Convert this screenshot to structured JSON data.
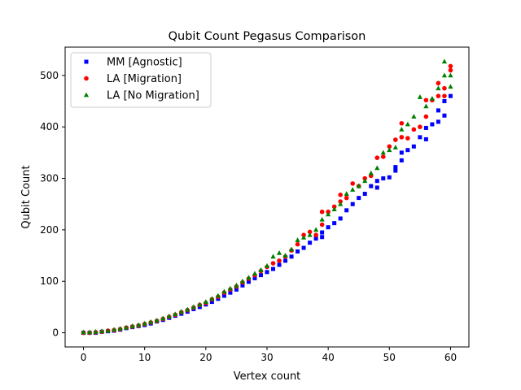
{
  "chart_data": {
    "type": "scatter",
    "title": "Qubit Count Pegasus Comparison",
    "xlabel": "Vertex count",
    "ylabel": "Qubit Count",
    "xlim": [
      -3,
      63
    ],
    "ylim": [
      -27.5,
      555
    ],
    "xticks": [
      0,
      10,
      20,
      30,
      40,
      50,
      60
    ],
    "yticks": [
      0,
      100,
      200,
      300,
      400,
      500
    ],
    "grid": false,
    "legend_position": "top-left",
    "series": [
      {
        "name": "MM [Agnostic]",
        "marker": "square",
        "color": "#0000ff",
        "points": [
          [
            0,
            0
          ],
          [
            1,
            0
          ],
          [
            2,
            0
          ],
          [
            3,
            2
          ],
          [
            4,
            3
          ],
          [
            5,
            4
          ],
          [
            6,
            6
          ],
          [
            7,
            9
          ],
          [
            8,
            11
          ],
          [
            9,
            13
          ],
          [
            10,
            15
          ],
          [
            11,
            18
          ],
          [
            12,
            22
          ],
          [
            13,
            25
          ],
          [
            14,
            29
          ],
          [
            15,
            33
          ],
          [
            16,
            37
          ],
          [
            17,
            41
          ],
          [
            18,
            46
          ],
          [
            19,
            50
          ],
          [
            20,
            55
          ],
          [
            21,
            60
          ],
          [
            22,
            66
          ],
          [
            23,
            72
          ],
          [
            24,
            78
          ],
          [
            25,
            84
          ],
          [
            26,
            92
          ],
          [
            27,
            99
          ],
          [
            28,
            106
          ],
          [
            29,
            112
          ],
          [
            30,
            118
          ],
          [
            31,
            124
          ],
          [
            32,
            132
          ],
          [
            33,
            140
          ],
          [
            34,
            148
          ],
          [
            35,
            158
          ],
          [
            36,
            165
          ],
          [
            37,
            175
          ],
          [
            38,
            183
          ],
          [
            39,
            186
          ],
          [
            39,
            195
          ],
          [
            40,
            205
          ],
          [
            41,
            213
          ],
          [
            42,
            222
          ],
          [
            43,
            238
          ],
          [
            44,
            250
          ],
          [
            45,
            262
          ],
          [
            46,
            270
          ],
          [
            47,
            285
          ],
          [
            48,
            282
          ],
          [
            48,
            295
          ],
          [
            49,
            300
          ],
          [
            50,
            302
          ],
          [
            51,
            315
          ],
          [
            51,
            322
          ],
          [
            52,
            335
          ],
          [
            52,
            350
          ],
          [
            53,
            355
          ],
          [
            54,
            362
          ],
          [
            55,
            380
          ],
          [
            56,
            376
          ],
          [
            56,
            398
          ],
          [
            57,
            405
          ],
          [
            58,
            410
          ],
          [
            58,
            432
          ],
          [
            59,
            422
          ],
          [
            59,
            450
          ],
          [
            60,
            460
          ]
        ]
      },
      {
        "name": "LA [Migration]",
        "marker": "circle",
        "color": "#ff0000",
        "points": [
          [
            0,
            0
          ],
          [
            1,
            0
          ],
          [
            2,
            1
          ],
          [
            3,
            2
          ],
          [
            4,
            4
          ],
          [
            5,
            5
          ],
          [
            6,
            7
          ],
          [
            7,
            10
          ],
          [
            8,
            12
          ],
          [
            9,
            14
          ],
          [
            10,
            17
          ],
          [
            11,
            20
          ],
          [
            12,
            23
          ],
          [
            13,
            27
          ],
          [
            14,
            31
          ],
          [
            15,
            35
          ],
          [
            16,
            40
          ],
          [
            17,
            44
          ],
          [
            18,
            49
          ],
          [
            19,
            54
          ],
          [
            20,
            58
          ],
          [
            21,
            65
          ],
          [
            22,
            70
          ],
          [
            23,
            78
          ],
          [
            24,
            84
          ],
          [
            25,
            90
          ],
          [
            26,
            98
          ],
          [
            27,
            105
          ],
          [
            28,
            112
          ],
          [
            29,
            120
          ],
          [
            30,
            128
          ],
          [
            31,
            135
          ],
          [
            32,
            140
          ],
          [
            33,
            148
          ],
          [
            34,
            160
          ],
          [
            35,
            172
          ],
          [
            36,
            190
          ],
          [
            37,
            196
          ],
          [
            38,
            190
          ],
          [
            39,
            210
          ],
          [
            39,
            235
          ],
          [
            40,
            235
          ],
          [
            41,
            245
          ],
          [
            42,
            255
          ],
          [
            42,
            268
          ],
          [
            43,
            262
          ],
          [
            44,
            290
          ],
          [
            45,
            285
          ],
          [
            46,
            300
          ],
          [
            47,
            305
          ],
          [
            48,
            340
          ],
          [
            49,
            342
          ],
          [
            50,
            362
          ],
          [
            51,
            375
          ],
          [
            52,
            407
          ],
          [
            52,
            380
          ],
          [
            53,
            378
          ],
          [
            54,
            395
          ],
          [
            55,
            400
          ],
          [
            56,
            420
          ],
          [
            56,
            452
          ],
          [
            57,
            452
          ],
          [
            58,
            460
          ],
          [
            58,
            485
          ],
          [
            59,
            460
          ],
          [
            59,
            475
          ],
          [
            60,
            510
          ],
          [
            60,
            518
          ]
        ]
      },
      {
        "name": "LA [No Migration]",
        "marker": "triangle",
        "color": "#008000",
        "points": [
          [
            0,
            1
          ],
          [
            1,
            1
          ],
          [
            2,
            2
          ],
          [
            3,
            3
          ],
          [
            4,
            4
          ],
          [
            5,
            6
          ],
          [
            6,
            8
          ],
          [
            7,
            10
          ],
          [
            8,
            13
          ],
          [
            9,
            15
          ],
          [
            10,
            18
          ],
          [
            11,
            21
          ],
          [
            12,
            24
          ],
          [
            13,
            28
          ],
          [
            14,
            32
          ],
          [
            15,
            36
          ],
          [
            16,
            41
          ],
          [
            17,
            45
          ],
          [
            18,
            50
          ],
          [
            19,
            55
          ],
          [
            20,
            60
          ],
          [
            21,
            66
          ],
          [
            22,
            72
          ],
          [
            23,
            80
          ],
          [
            24,
            86
          ],
          [
            25,
            92
          ],
          [
            26,
            100
          ],
          [
            27,
            107
          ],
          [
            28,
            115
          ],
          [
            29,
            122
          ],
          [
            30,
            130
          ],
          [
            31,
            148
          ],
          [
            32,
            155
          ],
          [
            33,
            150
          ],
          [
            34,
            162
          ],
          [
            35,
            180
          ],
          [
            36,
            185
          ],
          [
            37,
            190
          ],
          [
            38,
            200
          ],
          [
            39,
            220
          ],
          [
            40,
            230
          ],
          [
            41,
            240
          ],
          [
            42,
            250
          ],
          [
            43,
            270
          ],
          [
            44,
            278
          ],
          [
            45,
            285
          ],
          [
            46,
            295
          ],
          [
            47,
            310
          ],
          [
            48,
            320
          ],
          [
            49,
            350
          ],
          [
            50,
            355
          ],
          [
            51,
            360
          ],
          [
            52,
            395
          ],
          [
            53,
            405
          ],
          [
            54,
            420
          ],
          [
            55,
            458
          ],
          [
            56,
            440
          ],
          [
            57,
            455
          ],
          [
            58,
            475
          ],
          [
            59,
            527
          ],
          [
            59,
            500
          ],
          [
            60,
            500
          ],
          [
            60,
            478
          ]
        ]
      }
    ]
  }
}
